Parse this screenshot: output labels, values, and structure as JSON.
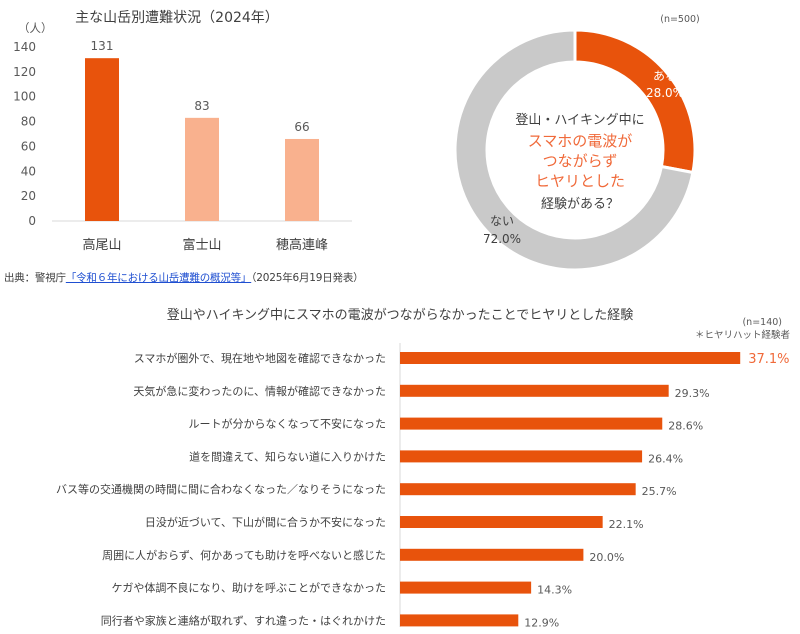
{
  "bar_chart": {
    "title": "主な山岳別遭難状況（2024年）",
    "unit_label": "（人）"
  },
  "donut_chart": {
    "sample_size": "(n=500)",
    "center_question": [
      "登山・ハイキング中に",
      "スマホの電波が",
      "つながらず",
      "ヒヤリとした",
      "経験がある？"
    ],
    "labels": [
      {
        "name": "ある",
        "pct": "28.0%"
      },
      {
        "name": "ない",
        "pct": "72.0%"
      }
    ]
  },
  "source": {
    "prefix": "出典：警視庁",
    "link_text": "「令和６年における山岳遭難の概況等」",
    "suffix": "（2025年6月19日発表）"
  },
  "hbar_chart": {
    "title": "登山やハイキング中にスマホの電波がつながらなかったことでヒヤリとした経験",
    "sample_size": "(n=140)",
    "note": "＊ヒヤリハット経験者"
  },
  "colors": {
    "orange": "#e8530c",
    "light_orange": "#f9b18e",
    "gray": "#c9c9c9",
    "axis": "#d9d9d9",
    "highlight_text": "#f06a3a"
  },
  "chart_data": [
    {
      "type": "bar",
      "title": "主な山岳別遭難状況（2024年）",
      "ylabel": "（人）",
      "categories": [
        "高尾山",
        "富士山",
        "穂高連峰"
      ],
      "values": [
        131,
        83,
        66
      ],
      "value_labels": [
        "131",
        "83",
        "66"
      ],
      "colors": [
        "#e8530c",
        "#f9b18e",
        "#f9b18e"
      ],
      "ylim": [
        0,
        140
      ],
      "yticks": [
        0,
        20,
        40,
        60,
        80,
        100,
        120,
        140
      ],
      "grid": false
    },
    {
      "type": "pie",
      "categories": [
        "ある",
        "ない"
      ],
      "values": [
        28.0,
        72.0
      ],
      "value_labels": [
        "28.0%",
        "72.0%"
      ],
      "colors": [
        "#e8530c",
        "#c9c9c9"
      ]
    },
    {
      "type": "bar",
      "orientation": "horizontal",
      "title": "登山やハイキング中にスマホの電波がつながらなかったことでヒヤリとした経験",
      "categories": [
        "スマホが圏外で、現在地や地図を確認できなかった",
        "天気が急に変わったのに、情報が確認できなかった",
        "ルートが分からなくなって不安になった",
        "道を間違えて、知らない道に入りかけた",
        "バス等の交通機関の時間に間に合わなくなった／なりそうになった",
        "日没が近づいて、下山が間に合うか不安になった",
        "周囲に人がおらず、何かあっても助けを呼べないと感じた",
        "ケガや体調不良になり、助けを呼ぶことができなかった",
        "同行者や家族と連絡が取れず、すれ違った・はぐれかけた"
      ],
      "values": [
        37.1,
        29.3,
        28.6,
        26.4,
        25.7,
        22.1,
        20.0,
        14.3,
        12.9
      ],
      "value_labels": [
        "37.1%",
        "29.3%",
        "28.6%",
        "26.4%",
        "25.7%",
        "22.1%",
        "20.0%",
        "14.3%",
        "12.9%"
      ],
      "color": "#e8530c",
      "grid": false
    }
  ]
}
